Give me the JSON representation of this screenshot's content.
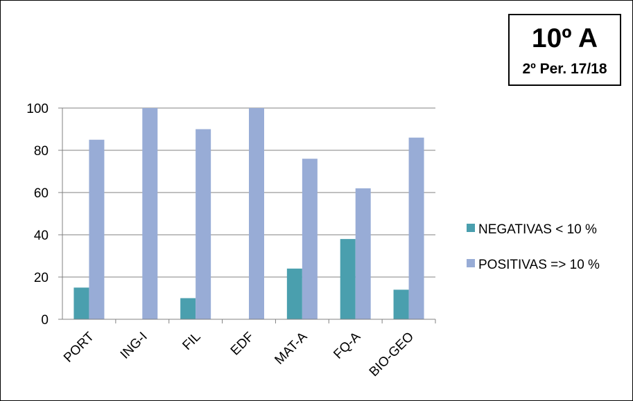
{
  "title": {
    "main": "10º A",
    "sub": "2º Per. 17/18"
  },
  "colors": {
    "negativas": "#4A9FAE",
    "positivas": "#98ACD6",
    "grid": "#808080"
  },
  "chart_data": {
    "type": "bar",
    "categories": [
      "PORT",
      "ING-I",
      "FIL",
      "EDF",
      "MAT-A",
      "FQ-A",
      "BIO-GEO"
    ],
    "series": [
      {
        "name": "NEGATIVAS < 10 %",
        "values": [
          15,
          0,
          10,
          0,
          24,
          38,
          14
        ]
      },
      {
        "name": "POSITIVAS => 10 %",
        "values": [
          85,
          100,
          90,
          100,
          76,
          62,
          86
        ]
      }
    ],
    "yticks": [
      0,
      20,
      40,
      60,
      80,
      100
    ],
    "ylim": [
      0,
      100
    ],
    "grid": true,
    "legend": "right"
  }
}
